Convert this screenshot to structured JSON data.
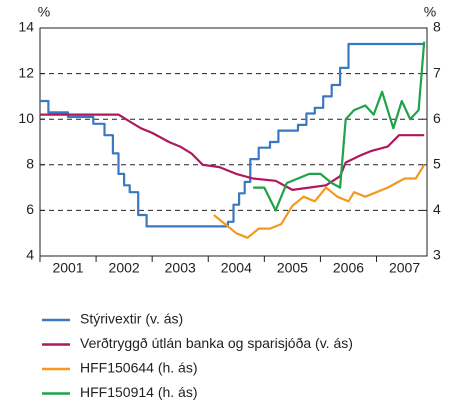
{
  "chart_data": {
    "type": "line",
    "y_label": "%",
    "y2_label": "%",
    "xlim": [
      2001,
      2007.9
    ],
    "xticks": [
      {
        "value": 2001,
        "label": "2001"
      },
      {
        "value": 2002,
        "label": "2002"
      },
      {
        "value": 2003,
        "label": "2003"
      },
      {
        "value": 2004,
        "label": "2004"
      },
      {
        "value": 2005,
        "label": "2005"
      },
      {
        "value": 2006,
        "label": "2006"
      },
      {
        "value": 2007,
        "label": "2007"
      }
    ],
    "ylim": [
      4,
      14
    ],
    "yticks": [
      4,
      6,
      8,
      10,
      12,
      14
    ],
    "y2lim": [
      3,
      8
    ],
    "y2ticks": [
      3,
      4,
      5,
      6,
      7,
      8
    ],
    "grid": true,
    "series": [
      {
        "name": "Stýrivextir (v. ás)",
        "color": "#3a78c0",
        "axis": "y",
        "x": [
          2001.0,
          2001.15,
          2001.15,
          2001.5,
          2001.5,
          2001.95,
          2001.95,
          2002.15,
          2002.15,
          2002.3,
          2002.3,
          2002.4,
          2002.4,
          2002.5,
          2002.5,
          2002.6,
          2002.6,
          2002.75,
          2002.75,
          2002.9,
          2002.9,
          2004.35,
          2004.35,
          2004.45,
          2004.45,
          2004.55,
          2004.55,
          2004.65,
          2004.65,
          2004.75,
          2004.75,
          2004.9,
          2004.9,
          2005.1,
          2005.1,
          2005.25,
          2005.25,
          2005.6,
          2005.6,
          2005.75,
          2005.75,
          2005.9,
          2005.9,
          2006.05,
          2006.05,
          2006.2,
          2006.2,
          2006.35,
          2006.35,
          2006.5,
          2006.5,
          2007.85
        ],
        "values": [
          10.8,
          10.8,
          10.3,
          10.3,
          10.1,
          10.1,
          9.8,
          9.8,
          9.3,
          9.3,
          8.5,
          8.5,
          7.6,
          7.6,
          7.1,
          7.1,
          6.8,
          6.8,
          5.8,
          5.8,
          5.3,
          5.3,
          5.5,
          5.5,
          6.25,
          6.25,
          6.75,
          6.75,
          7.25,
          7.25,
          8.25,
          8.25,
          8.75,
          8.75,
          9.0,
          9.0,
          9.5,
          9.5,
          9.75,
          9.75,
          10.25,
          10.25,
          10.5,
          10.5,
          11.0,
          11.0,
          11.5,
          11.5,
          12.25,
          12.25,
          13.3,
          13.3
        ]
      },
      {
        "name": "Verðtryggð útlán banka og sparisjóða (v. ás)",
        "color": "#b0185e",
        "axis": "y",
        "x": [
          2001.0,
          2002.4,
          2002.6,
          2002.8,
          2003.0,
          2003.3,
          2003.5,
          2003.7,
          2003.9,
          2004.2,
          2004.5,
          2004.8,
          2005.2,
          2005.5,
          2005.8,
          2006.1,
          2006.35,
          2006.45,
          2006.7,
          2006.9,
          2007.2,
          2007.4,
          2007.85
        ],
        "values": [
          10.2,
          10.2,
          9.9,
          9.6,
          9.4,
          9.0,
          8.8,
          8.5,
          8.0,
          7.9,
          7.6,
          7.4,
          7.3,
          6.9,
          7.0,
          7.1,
          7.5,
          8.1,
          8.4,
          8.6,
          8.8,
          9.3,
          9.3
        ]
      },
      {
        "name": "HFF150644 (h. ás)",
        "color": "#f39a1e",
        "axis": "y2",
        "x": [
          2004.1,
          2004.3,
          2004.5,
          2004.7,
          2004.9,
          2005.1,
          2005.3,
          2005.5,
          2005.7,
          2005.9,
          2006.1,
          2006.3,
          2006.5,
          2006.6,
          2006.8,
          2007.0,
          2007.2,
          2007.5,
          2007.7,
          2007.85
        ],
        "values": [
          3.9,
          3.7,
          3.5,
          3.4,
          3.6,
          3.6,
          3.7,
          4.1,
          4.3,
          4.2,
          4.5,
          4.3,
          4.2,
          4.4,
          4.3,
          4.4,
          4.5,
          4.7,
          4.7,
          5.0
        ]
      },
      {
        "name": "HFF150914 (h. ás)",
        "color": "#1fa34a",
        "axis": "y2",
        "x": [
          2004.8,
          2005.0,
          2005.2,
          2005.4,
          2005.6,
          2005.8,
          2006.0,
          2006.2,
          2006.35,
          2006.45,
          2006.6,
          2006.8,
          2006.95,
          2007.1,
          2007.3,
          2007.45,
          2007.6,
          2007.75,
          2007.85
        ],
        "values": [
          4.5,
          4.5,
          4.0,
          4.6,
          4.7,
          4.8,
          4.8,
          4.6,
          4.5,
          6.0,
          6.2,
          6.3,
          6.1,
          6.6,
          5.8,
          6.4,
          6.0,
          6.2,
          7.7
        ]
      }
    ]
  }
}
